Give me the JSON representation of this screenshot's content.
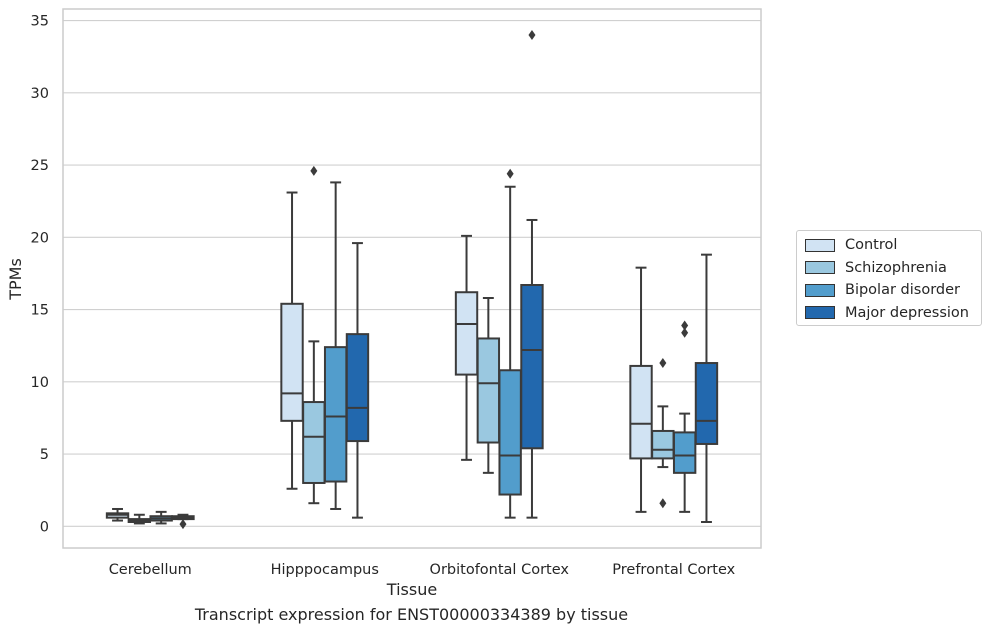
{
  "caption": "Transcript expression for ENST00000334389 by tissue",
  "chart_data": {
    "type": "boxplot",
    "xlabel": "Tissue",
    "ylabel": "TPMs",
    "ylim": [
      -1.5,
      35.8
    ],
    "yticks": [
      0,
      5,
      10,
      15,
      20,
      25,
      30,
      35
    ],
    "grid": "horizontal",
    "legend_position": "right",
    "categories": [
      "Cerebellum",
      "Hipppocampus",
      "Orbitofontal Cortex",
      "Prefrontal Cortex"
    ],
    "series": [
      {
        "name": "Control",
        "color": "#d1e3f3",
        "boxes": [
          {
            "whislo": 0.4,
            "q1": 0.6,
            "med": 0.8,
            "q3": 0.9,
            "whishi": 1.2,
            "fliers": []
          },
          {
            "whislo": 2.6,
            "q1": 7.3,
            "med": 9.2,
            "q3": 15.4,
            "whishi": 23.1,
            "fliers": []
          },
          {
            "whislo": 4.6,
            "q1": 10.5,
            "med": 14.0,
            "q3": 16.2,
            "whishi": 20.1,
            "fliers": []
          },
          {
            "whislo": 1.0,
            "q1": 4.7,
            "med": 7.1,
            "q3": 11.1,
            "whishi": 17.9,
            "fliers": []
          }
        ]
      },
      {
        "name": "Schizophrenia",
        "color": "#9ac8e0",
        "boxes": [
          {
            "whislo": 0.2,
            "q1": 0.3,
            "med": 0.4,
            "q3": 0.5,
            "whishi": 0.8,
            "fliers": []
          },
          {
            "whislo": 1.6,
            "q1": 3.0,
            "med": 6.2,
            "q3": 8.6,
            "whishi": 12.8,
            "fliers": [
              24.6
            ]
          },
          {
            "whislo": 3.7,
            "q1": 5.8,
            "med": 9.9,
            "q3": 13.0,
            "whishi": 15.8,
            "fliers": []
          },
          {
            "whislo": 4.1,
            "q1": 4.7,
            "med": 5.3,
            "q3": 6.6,
            "whishi": 8.3,
            "fliers": [
              11.3,
              1.6
            ]
          }
        ]
      },
      {
        "name": "Bipolar disorder",
        "color": "#529dcc",
        "boxes": [
          {
            "whislo": 0.2,
            "q1": 0.4,
            "med": 0.55,
            "q3": 0.7,
            "whishi": 1.0,
            "fliers": []
          },
          {
            "whislo": 1.2,
            "q1": 3.1,
            "med": 7.6,
            "q3": 12.4,
            "whishi": 23.8,
            "fliers": []
          },
          {
            "whislo": 0.6,
            "q1": 2.2,
            "med": 4.9,
            "q3": 10.8,
            "whishi": 23.5,
            "fliers": [
              24.4
            ]
          },
          {
            "whislo": 1.0,
            "q1": 3.7,
            "med": 4.9,
            "q3": 6.5,
            "whishi": 7.8,
            "fliers": [
              13.4,
              13.9
            ]
          }
        ]
      },
      {
        "name": "Major depression",
        "color": "#2268ae",
        "boxes": [
          {
            "whislo": 0.5,
            "q1": 0.5,
            "med": 0.6,
            "q3": 0.7,
            "whishi": 0.8,
            "fliers": [
              0.15
            ]
          },
          {
            "whislo": 0.6,
            "q1": 5.9,
            "med": 8.2,
            "q3": 13.3,
            "whishi": 19.6,
            "fliers": []
          },
          {
            "whislo": 0.6,
            "q1": 5.4,
            "med": 12.2,
            "q3": 16.7,
            "whishi": 21.2,
            "fliers": [
              34.0
            ]
          },
          {
            "whislo": 0.3,
            "q1": 5.7,
            "med": 7.3,
            "q3": 11.3,
            "whishi": 18.8,
            "fliers": []
          }
        ]
      }
    ]
  }
}
